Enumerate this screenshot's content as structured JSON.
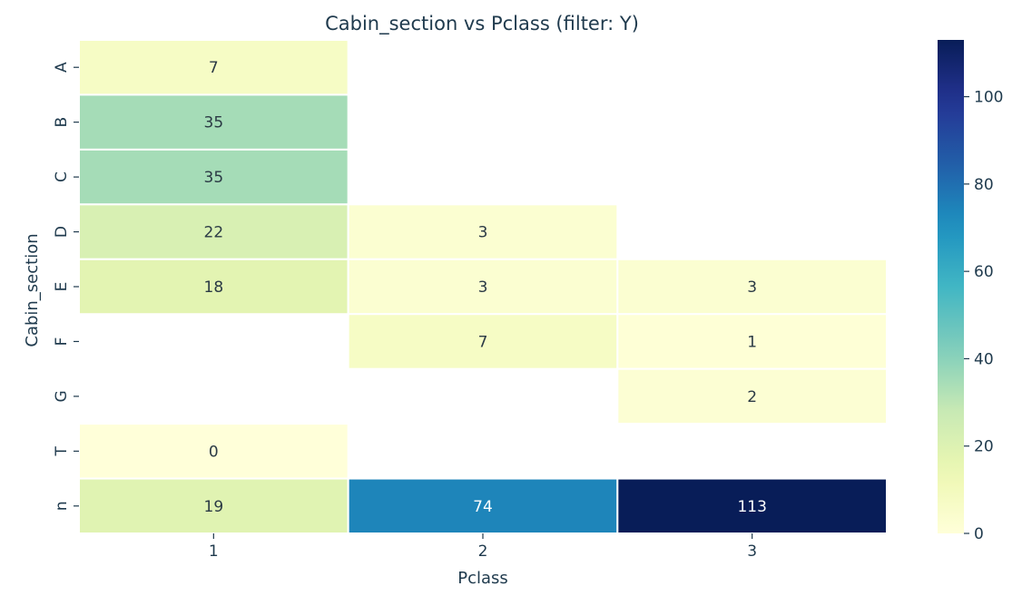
{
  "chart_data": {
    "type": "heatmap",
    "title": "Cabin_section  vs  Pclass  (filter: Y)",
    "xlabel": "Pclass",
    "ylabel": "Cabin_section",
    "x_categories": [
      "1",
      "2",
      "3"
    ],
    "y_categories": [
      "A",
      "B",
      "C",
      "D",
      "E",
      "F",
      "G",
      "T",
      "n"
    ],
    "values": [
      [
        7,
        null,
        null
      ],
      [
        35,
        null,
        null
      ],
      [
        35,
        null,
        null
      ],
      [
        22,
        3,
        null
      ],
      [
        18,
        3,
        3
      ],
      [
        null,
        7,
        1
      ],
      [
        null,
        null,
        2
      ],
      [
        0,
        null,
        null
      ],
      [
        19,
        74,
        113
      ]
    ],
    "colorbar": {
      "colormap": "YlGnBu",
      "range": [
        0,
        113
      ],
      "ticks": [
        "0",
        "20",
        "40",
        "60",
        "80",
        "100"
      ]
    }
  }
}
